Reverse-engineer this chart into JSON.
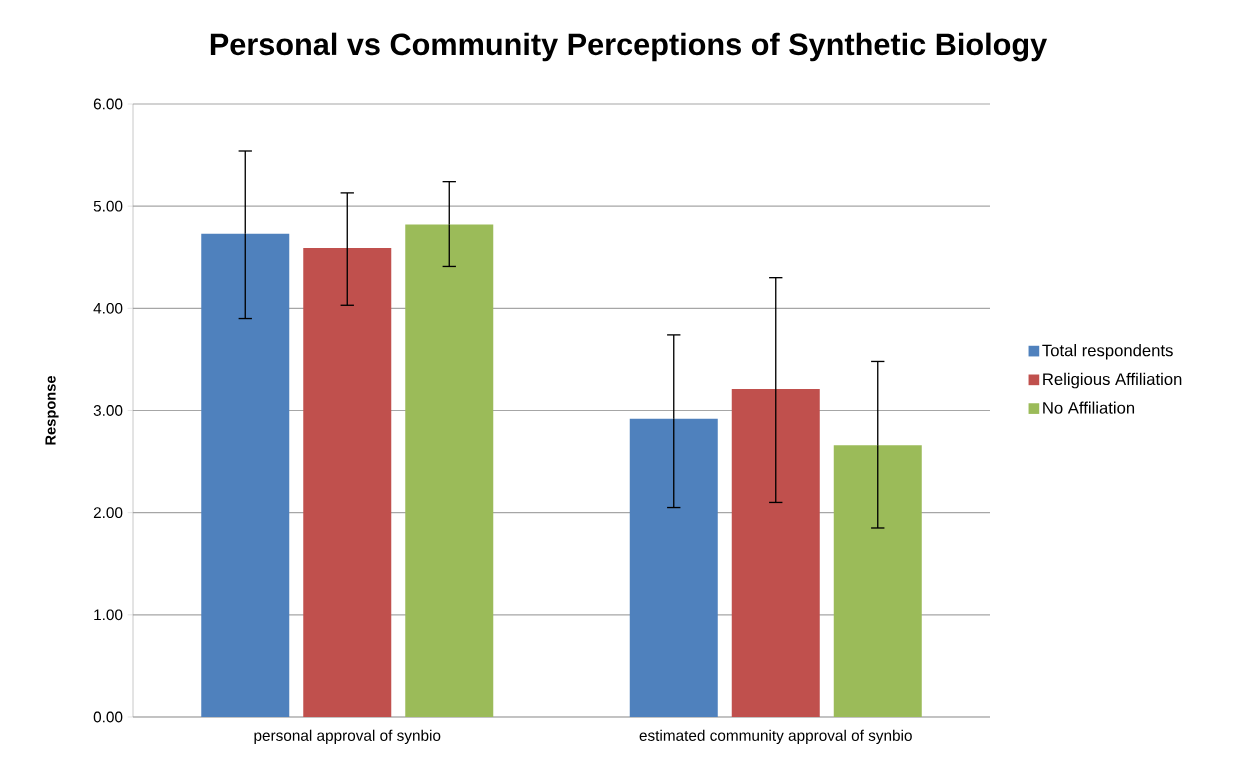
{
  "chart_data": {
    "type": "bar",
    "title": "Personal vs Community Perceptions of Synthetic Biology",
    "ylabel": "Response",
    "categories": [
      "personal approval of synbio",
      "estimated community approval of synbio"
    ],
    "series": [
      {
        "name": "Total respondents",
        "color": "#4f81bd",
        "values": [
          4.73,
          2.92
        ],
        "errors": [
          [
            3.9,
            5.54
          ],
          [
            2.05,
            3.74
          ]
        ]
      },
      {
        "name": "Religious Affiliation",
        "color": "#c0504d",
        "values": [
          4.59,
          3.21
        ],
        "errors": [
          [
            4.03,
            5.13
          ],
          [
            2.1,
            4.3
          ]
        ]
      },
      {
        "name": "No Affiliation",
        "color": "#9bbb59",
        "values": [
          4.82,
          2.66
        ],
        "errors": [
          [
            4.41,
            5.24
          ],
          [
            1.85,
            3.48
          ]
        ]
      }
    ],
    "ylim": [
      0,
      6
    ],
    "yticks": [
      {
        "value": 0,
        "label": "0.00"
      },
      {
        "value": 1,
        "label": "1.00"
      },
      {
        "value": 2,
        "label": "2.00"
      },
      {
        "value": 3,
        "label": "3.00"
      },
      {
        "value": 4,
        "label": "4.00"
      },
      {
        "value": 5,
        "label": "5.00"
      },
      {
        "value": 6,
        "label": "6.00"
      }
    ],
    "grid": "y",
    "legend": "right"
  }
}
